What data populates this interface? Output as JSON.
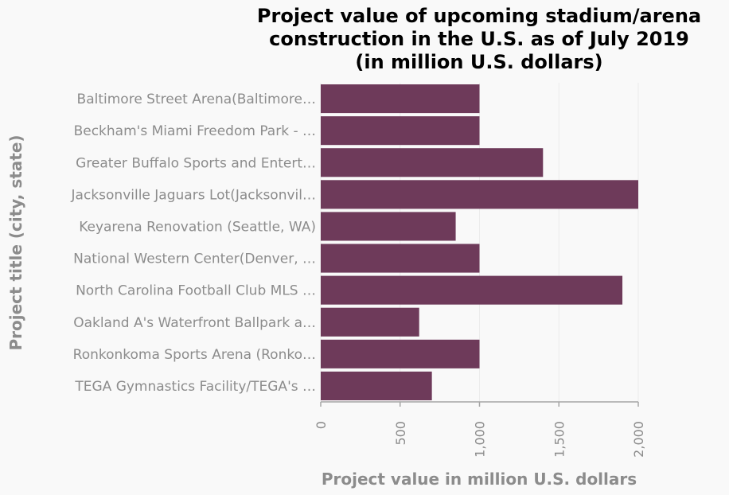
{
  "chart_data": {
    "type": "bar",
    "orientation": "horizontal",
    "title_lines": [
      "Project value of upcoming stadium/arena",
      "construction in the U.S. as of July 2019",
      "(in million U.S. dollars)"
    ],
    "xlabel": "Project value in million U.S. dollars",
    "ylabel": "Project title (city, state)",
    "xlim": [
      0,
      2000
    ],
    "xticks": [
      0,
      500,
      1000,
      1500,
      2000
    ],
    "xtick_labels": [
      "0",
      "500",
      "1,000",
      "1,500",
      "2,000"
    ],
    "categories": [
      "Baltimore Street Arena(Baltimore…",
      "Beckham's Miami Freedom Park - …",
      "Greater Buffalo Sports and Entert…",
      "Jacksonville Jaguars Lot(Jacksonvil…",
      "Keyarena Renovation (Seattle, WA)",
      "National Western Center(Denver, …",
      "North Carolina Football Club MLS …",
      "Oakland A's Waterfront Ballpark a…",
      "Ronkonkoma Sports Arena (Ronko…",
      "TEGA Gymnastics Facility/TEGA's …"
    ],
    "values": [
      1000,
      1000,
      1400,
      2000,
      850,
      1000,
      1900,
      620,
      1000,
      700
    ],
    "bar_color": "#6e3a5a",
    "grid": "vertical"
  }
}
